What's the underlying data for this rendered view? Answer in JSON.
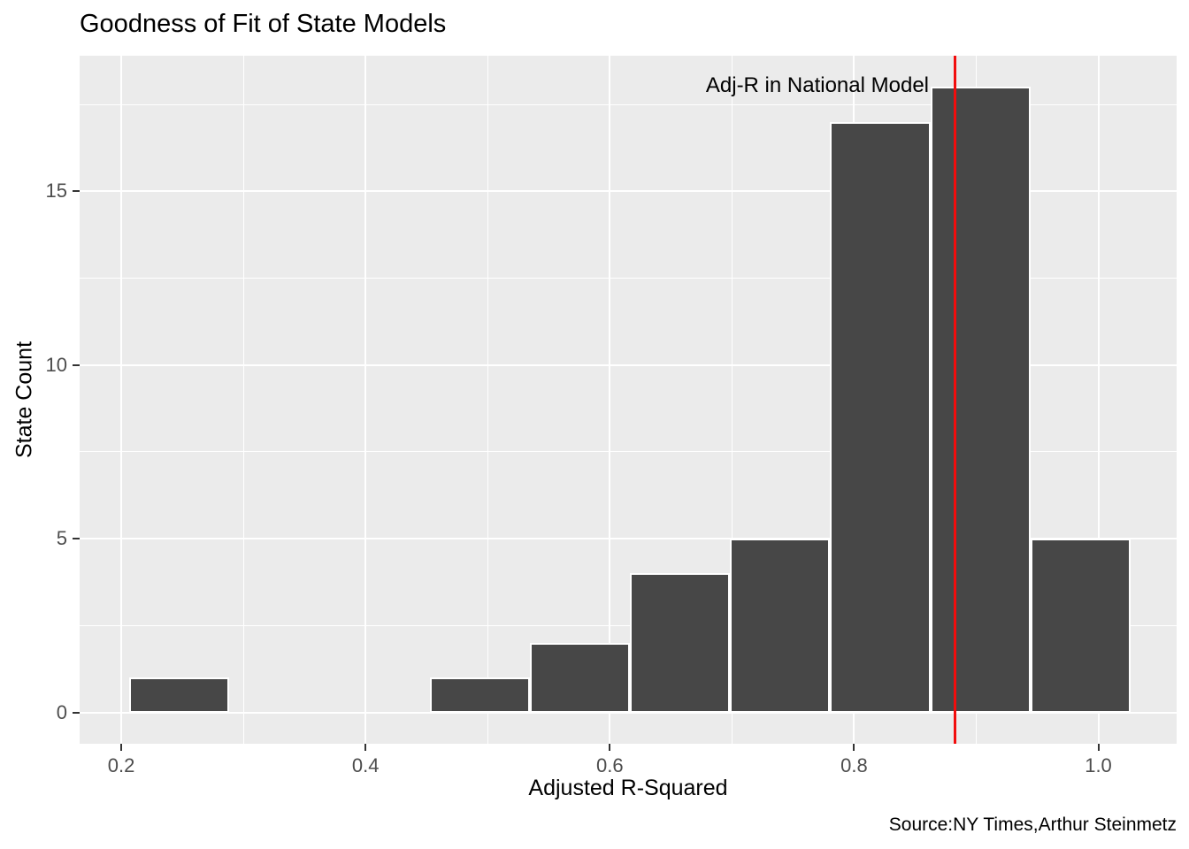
{
  "title": "Goodness of Fit of State Models",
  "caption": "Source:NY Times,Arthur Steinmetz",
  "chart_data": {
    "type": "bar",
    "subtype": "histogram",
    "title": "Goodness of Fit of State Models",
    "xlabel": "Adjusted R-Squared",
    "ylabel": "State Count",
    "bin_edges": [
      0.2065,
      0.2885,
      0.3705,
      0.4525,
      0.5345,
      0.6165,
      0.6985,
      0.7805,
      0.8625,
      0.9445,
      1.0265
    ],
    "counts": [
      1,
      0,
      0,
      1,
      2,
      4,
      5,
      17,
      18,
      5
    ],
    "x_ticks": [
      0.2,
      0.4,
      0.6,
      0.8,
      1.0
    ],
    "x_minor_ticks": [
      0.3,
      0.5,
      0.7,
      0.9
    ],
    "y_ticks": [
      0,
      5,
      10,
      15
    ],
    "y_minor_ticks": [
      2.5,
      7.5,
      12.5,
      17.5
    ],
    "xlim": [
      0.1659,
      1.0641
    ],
    "ylim": [
      -0.9,
      18.9
    ],
    "grid": "on",
    "vline": {
      "x": 0.883,
      "label": "Adj-R in National Model",
      "color": "#F20D0D"
    },
    "colors": {
      "bar_fill": "#474747",
      "bar_stroke": "#FFFFFF",
      "panel_bg": "#EBEBEB",
      "grid": "#FFFFFF",
      "tick_label": "#4D4D4D",
      "text": "#000000"
    }
  }
}
